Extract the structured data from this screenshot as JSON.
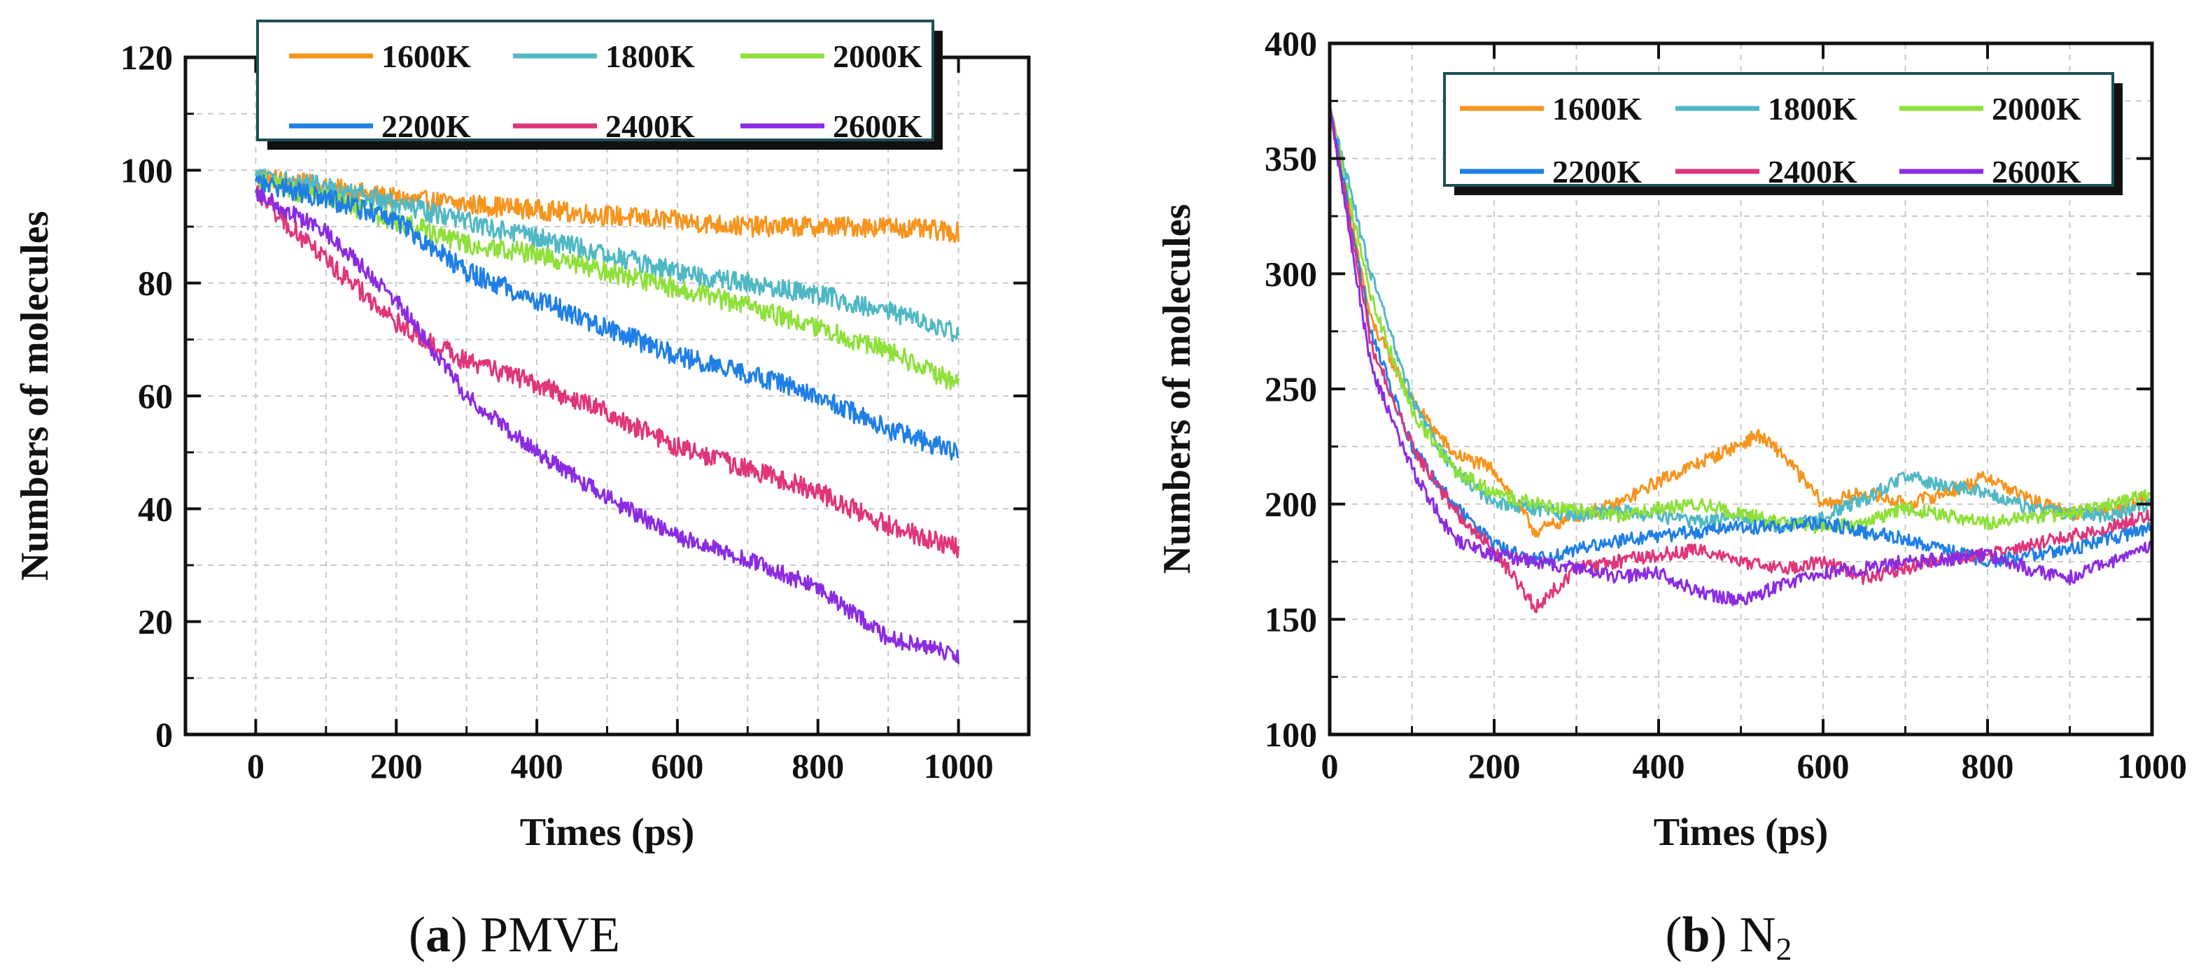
{
  "chart_data": [
    {
      "panel_id": "a",
      "type": "line",
      "caption_label": "a",
      "caption_text": "PMVE",
      "title": "",
      "xlabel": "Times (ps)",
      "ylabel": "Numbers  of  molecules",
      "xlim": [
        -100,
        1100
      ],
      "ylim": [
        0,
        120
      ],
      "xticks": [
        0,
        200,
        400,
        600,
        800,
        1000
      ],
      "yticks": [
        0,
        20,
        40,
        60,
        80,
        100,
        120
      ],
      "grid": true,
      "legend_position": "top",
      "legend_columns": 3,
      "series": [
        {
          "name": "1600K",
          "color": "#f7941d",
          "x": [
            0,
            100,
            200,
            300,
            400,
            500,
            600,
            700,
            800,
            900,
            1000
          ],
          "values": [
            99,
            97,
            95,
            94,
            93,
            92,
            91,
            90,
            90,
            90,
            89
          ],
          "noise": 1.8
        },
        {
          "name": "1800K",
          "color": "#4fb8c4",
          "x": [
            0,
            100,
            200,
            300,
            400,
            500,
            600,
            700,
            800,
            900,
            1000
          ],
          "values": [
            99,
            97,
            94,
            91,
            88,
            85,
            82,
            80,
            78,
            75,
            71
          ],
          "noise": 1.8
        },
        {
          "name": "2000K",
          "color": "#8ee03a",
          "x": [
            0,
            100,
            200,
            300,
            400,
            500,
            600,
            700,
            800,
            900,
            1000
          ],
          "values": [
            98,
            95,
            91,
            87,
            85,
            82,
            79,
            76,
            72,
            68,
            62
          ],
          "noise": 1.8
        },
        {
          "name": "2200K",
          "color": "#1f7fe6",
          "x": [
            0,
            100,
            200,
            300,
            400,
            500,
            600,
            700,
            800,
            900,
            1000
          ],
          "values": [
            98,
            95,
            91,
            82,
            77,
            72,
            67,
            64,
            60,
            54,
            50
          ],
          "noise": 1.8
        },
        {
          "name": "2400K",
          "color": "#e0357a",
          "x": [
            0,
            100,
            200,
            300,
            400,
            500,
            600,
            700,
            800,
            900,
            1000
          ],
          "values": [
            96,
            84,
            73,
            66,
            62,
            57,
            51,
            47,
            43,
            37,
            33
          ],
          "noise": 1.8
        },
        {
          "name": "2600K",
          "color": "#8b2be2",
          "x": [
            0,
            100,
            200,
            300,
            400,
            500,
            600,
            700,
            800,
            900,
            1000
          ],
          "values": [
            96,
            89,
            77,
            60,
            50,
            42,
            35,
            31,
            26,
            17,
            14
          ],
          "noise": 1.5
        }
      ]
    },
    {
      "panel_id": "b",
      "type": "line",
      "caption_label": "b",
      "caption_text": "N",
      "caption_subscript": "2",
      "title": "",
      "xlabel": "Times (ps)",
      "ylabel": "Numbers  of  molecules",
      "xlim": [
        0,
        1000
      ],
      "ylim": [
        100,
        400
      ],
      "xticks": [
        0,
        200,
        400,
        600,
        800,
        1000
      ],
      "yticks": [
        100,
        150,
        200,
        250,
        300,
        350,
        400
      ],
      "grid": true,
      "legend_position": "top-right",
      "legend_columns": 3,
      "series": [
        {
          "name": "1600K",
          "color": "#f7941d",
          "x": [
            0,
            50,
            100,
            150,
            200,
            250,
            300,
            350,
            400,
            450,
            500,
            520,
            550,
            600,
            650,
            700,
            750,
            800,
            850,
            900,
            950,
            1000
          ],
          "values": [
            372,
            280,
            245,
            222,
            215,
            188,
            195,
            200,
            210,
            218,
            226,
            230,
            222,
            200,
            205,
            200,
            205,
            212,
            202,
            196,
            198,
            202
          ],
          "noise": 3
        },
        {
          "name": "1800K",
          "color": "#4fb8c4",
          "x": [
            0,
            50,
            100,
            150,
            200,
            250,
            300,
            350,
            400,
            450,
            500,
            550,
            600,
            650,
            700,
            750,
            800,
            850,
            900,
            950,
            1000
          ],
          "values": [
            372,
            300,
            245,
            215,
            200,
            198,
            195,
            197,
            195,
            192,
            195,
            190,
            195,
            202,
            212,
            208,
            205,
            198,
            196,
            195,
            200
          ],
          "noise": 3
        },
        {
          "name": "2000K",
          "color": "#8ee03a",
          "x": [
            0,
            50,
            100,
            150,
            200,
            250,
            300,
            350,
            400,
            450,
            500,
            550,
            600,
            650,
            700,
            750,
            800,
            850,
            900,
            950,
            1000
          ],
          "values": [
            372,
            290,
            240,
            215,
            205,
            200,
            198,
            195,
            198,
            200,
            196,
            192,
            190,
            192,
            198,
            195,
            192,
            194,
            196,
            200,
            204
          ],
          "noise": 3
        },
        {
          "name": "2200K",
          "color": "#1f7fe6",
          "x": [
            0,
            50,
            100,
            150,
            200,
            250,
            300,
            350,
            400,
            450,
            500,
            550,
            600,
            650,
            700,
            750,
            800,
            850,
            900,
            950,
            1000
          ],
          "values": [
            372,
            275,
            225,
            200,
            182,
            176,
            180,
            184,
            186,
            188,
            190,
            190,
            192,
            188,
            185,
            180,
            175,
            178,
            180,
            185,
            190
          ],
          "noise": 3
        },
        {
          "name": "2400K",
          "color": "#e0357a",
          "x": [
            0,
            50,
            100,
            150,
            200,
            250,
            300,
            350,
            400,
            450,
            500,
            550,
            600,
            650,
            700,
            750,
            800,
            850,
            900,
            950,
            1000
          ],
          "values": [
            372,
            270,
            225,
            198,
            180,
            155,
            172,
            175,
            178,
            180,
            175,
            172,
            175,
            168,
            172,
            176,
            178,
            182,
            186,
            190,
            196
          ],
          "noise": 3
        },
        {
          "name": "2600K",
          "color": "#8b2be2",
          "x": [
            0,
            50,
            100,
            150,
            200,
            250,
            300,
            350,
            400,
            450,
            500,
            550,
            600,
            650,
            700,
            750,
            800,
            850,
            900,
            950,
            1000
          ],
          "values": [
            372,
            260,
            215,
            185,
            178,
            175,
            172,
            168,
            170,
            162,
            158,
            165,
            170,
            172,
            175,
            176,
            178,
            172,
            168,
            175,
            182
          ],
          "noise": 3
        }
      ]
    }
  ]
}
